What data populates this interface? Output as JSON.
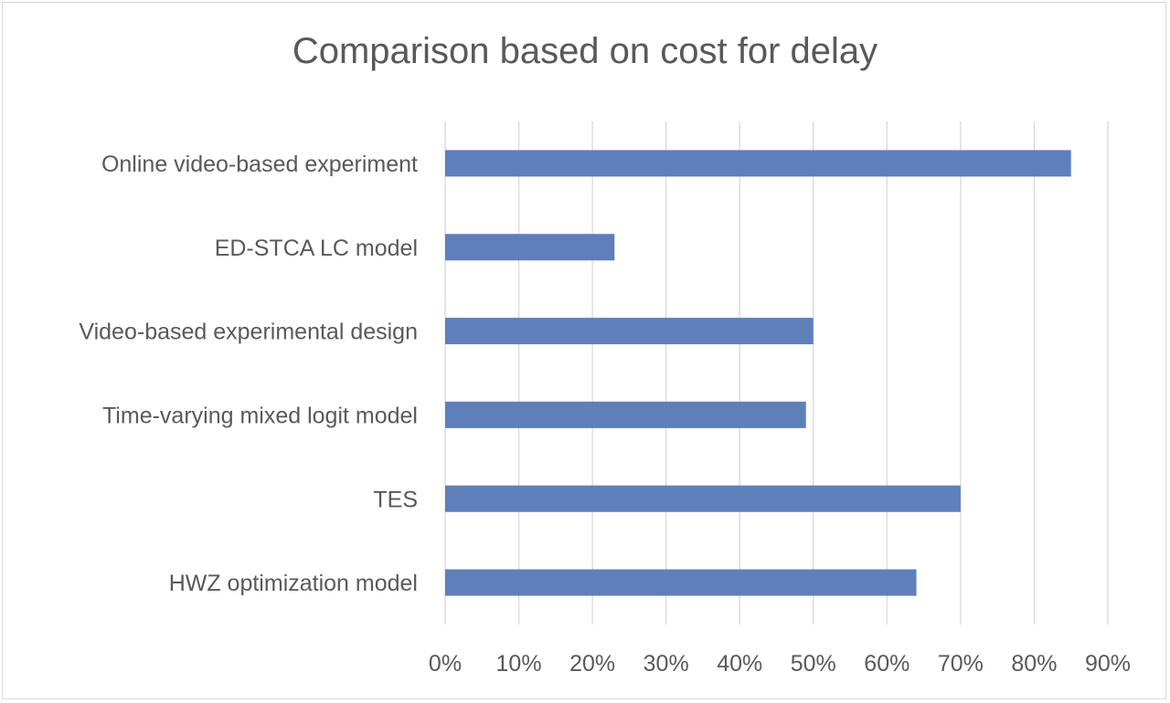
{
  "chart_data": {
    "type": "bar",
    "orientation": "horizontal",
    "title": "Comparison based on cost for delay",
    "categories": [
      "Online video-based experiment",
      "ED-STCA LC model",
      "Video-based experimental design",
      "Time-varying mixed logit model",
      "TES",
      "HWZ optimization model"
    ],
    "values": [
      85,
      23,
      50,
      49,
      70,
      64
    ],
    "unit": "%",
    "xlim": [
      0,
      90
    ],
    "xticks": [
      "0%",
      "10%",
      "20%",
      "30%",
      "40%",
      "50%",
      "60%",
      "70%",
      "80%",
      "90%"
    ],
    "grid": "vertical",
    "legend": "none",
    "bar_color": "#5f7fbb",
    "xlabel": "",
    "ylabel": ""
  }
}
